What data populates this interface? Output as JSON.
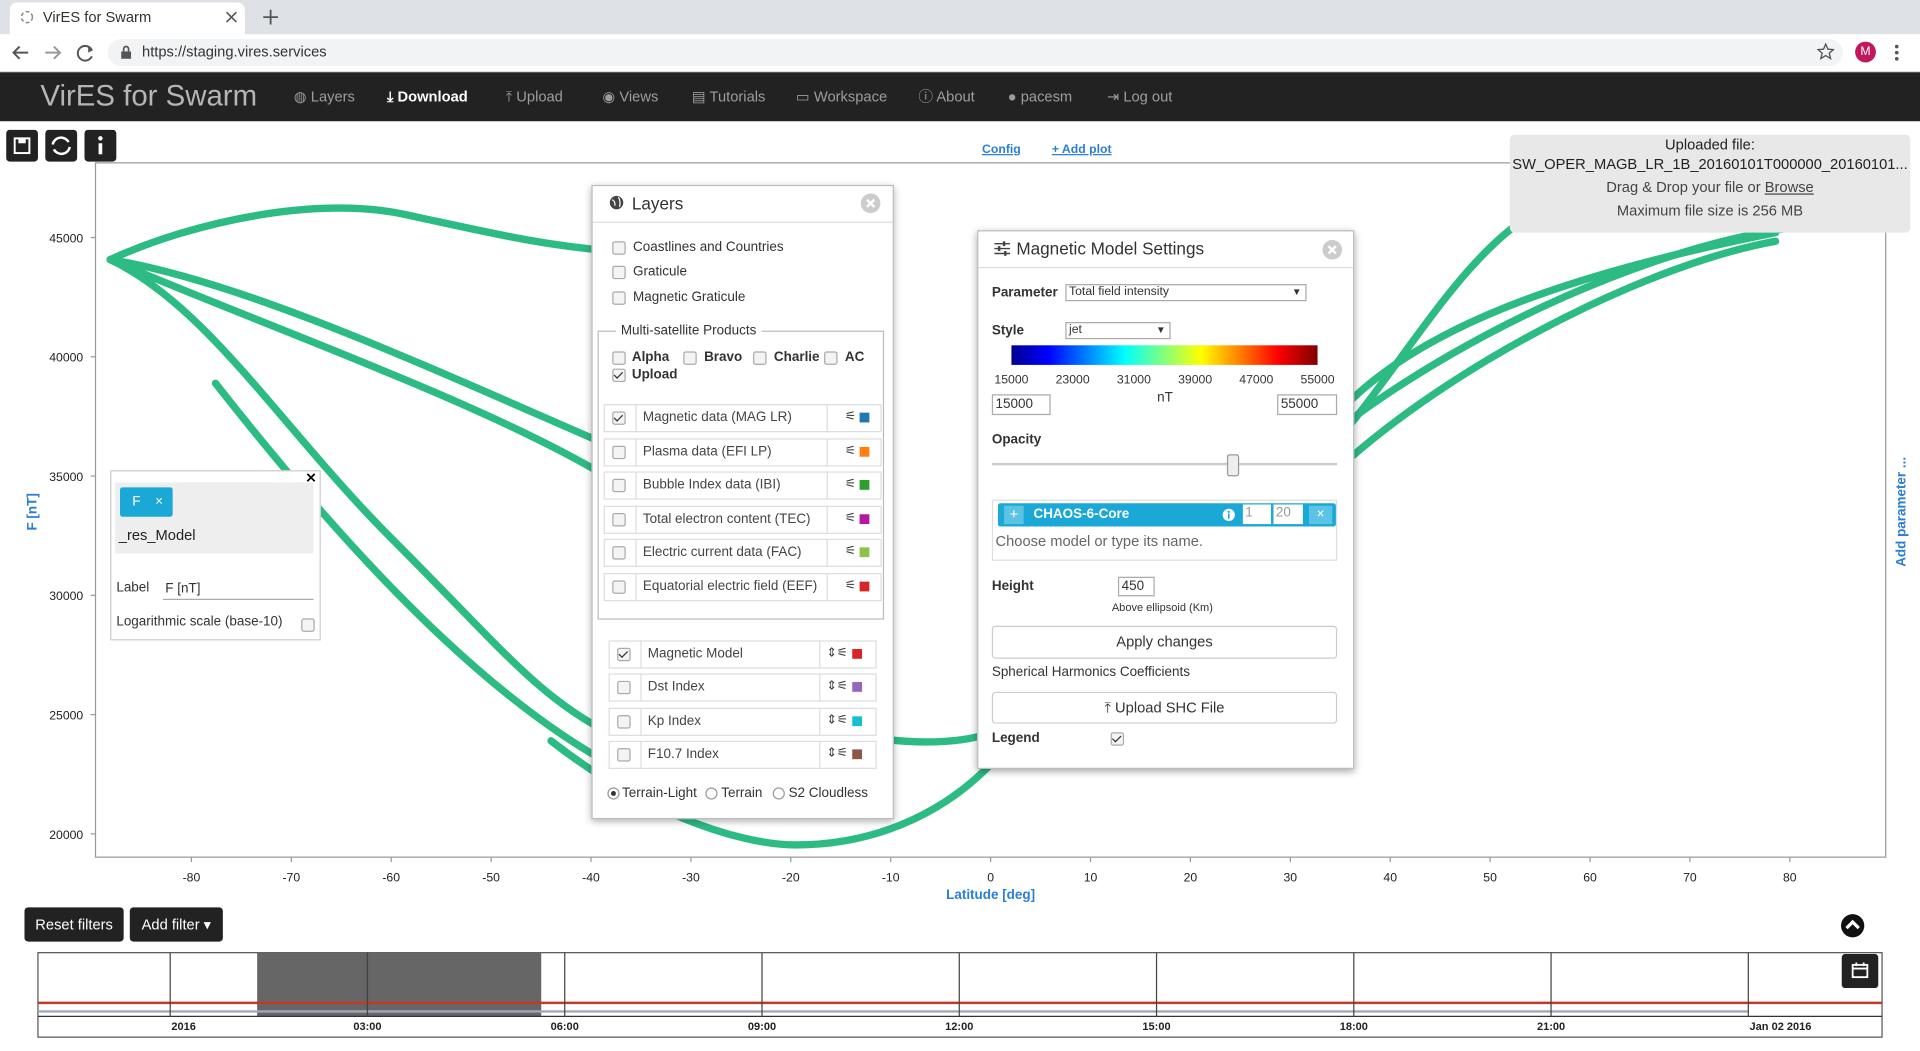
{
  "browser": {
    "tab_title": "VirES for Swarm",
    "url": "https://staging.vires.services",
    "avatar": "M"
  },
  "navbar": {
    "brand": "VirES for Swarm",
    "items": [
      "Layers",
      "Download",
      "Upload",
      "Views",
      "Tutorials",
      "Workspace",
      "About",
      "pacesm",
      "Log out"
    ]
  },
  "plot": {
    "links": [
      "Config",
      "+ Add plot"
    ],
    "y_label": "F [nT]",
    "x_label": "Latitude [deg]",
    "add_parameter": "Add parameter ...",
    "xlim": [
      -89.6,
      89.6
    ],
    "ylim": [
      19025,
      48130
    ],
    "xticks": [
      -80,
      -70,
      -60,
      -50,
      -40,
      -30,
      -20,
      -10,
      0,
      10,
      20,
      30,
      40,
      50,
      60,
      70,
      80
    ],
    "yticks": [
      20000,
      25000,
      30000,
      35000,
      40000,
      45000
    ]
  },
  "parameter_box": {
    "chip": "F",
    "parameter": "_res_Model",
    "label_caption": "Label",
    "label_value": "F [nT]",
    "log_scale": "Logarithmic scale (base-10)"
  },
  "layers": {
    "title": "Layers",
    "overlays": [
      "Coastlines and Countries",
      "Graticule",
      "Magnetic Graticule"
    ],
    "group_title": "Multi-satellite Products",
    "satellites": [
      "Alpha",
      "Bravo",
      "Charlie",
      "AC",
      "Upload"
    ],
    "products": [
      "Magnetic data (MAG LR)",
      "Plasma data (EFI LP)",
      "Bubble Index data (IBI)",
      "Total electron content (TEC)",
      "Electric current data (FAC)",
      "Equatorial electric field (EEF)"
    ],
    "models": [
      "Magnetic Model",
      "Dst Index",
      "Kp Index",
      "F10.7 Index"
    ],
    "base_layers": [
      "Terrain-Light",
      "Terrain",
      "S2 Cloudless"
    ]
  },
  "model_settings": {
    "title": "Magnetic Model Settings",
    "parameter_label": "Parameter",
    "parameter_value": "Total field intensity",
    "style_label": "Style",
    "style_value": "jet",
    "colorbar_ticks": [
      "15000",
      "23000",
      "31000",
      "39000",
      "47000",
      "55000"
    ],
    "unit": "nT",
    "range_min": "15000",
    "range_max": "55000",
    "opacity_label": "Opacity",
    "model_name": "CHAOS-6-Core",
    "degree_min": "1",
    "degree_max": "20",
    "model_placeholder": "Choose model or type its name.",
    "height_label": "Height",
    "height_value": "450",
    "height_note": "Above ellipsoid (Km)",
    "apply": "Apply changes",
    "shc_label": "Spherical Harmonics Coefficients",
    "upload_shc": "Upload SHC File",
    "legend_label": "Legend"
  },
  "upload_box": {
    "title": "Uploaded file:",
    "filename": "SW_OPER_MAGB_LR_1B_20160101T000000_20160101...",
    "drop_text": "Drag & Drop your file or",
    "browse": "Browse",
    "max_size": "Maximum file size is 256 MB"
  },
  "filters": {
    "reset": "Reset filters",
    "add": "Add filter"
  },
  "timeline": {
    "labels": [
      "2016",
      "03:00",
      "06:00",
      "09:00",
      "12:00",
      "15:00",
      "18:00",
      "21:00",
      "Jan 02 2016"
    ]
  }
}
